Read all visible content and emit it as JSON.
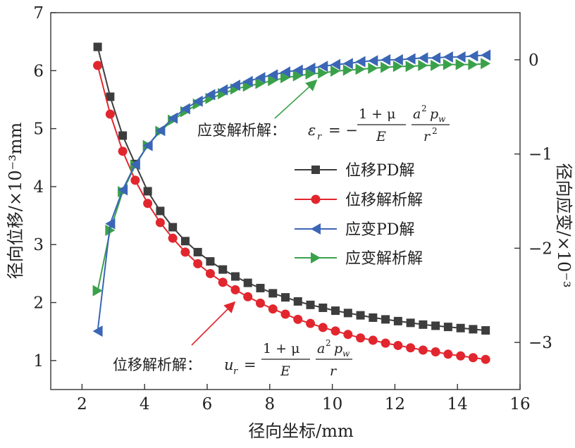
{
  "chart_data": {
    "type": "line",
    "xlabel": "径向坐标/mm",
    "ylabel_left": "径向位移/×10⁻³mm",
    "ylabel_right": "径向应变/×10⁻³",
    "xlim": [
      1,
      16
    ],
    "ylim_left": [
      0.5,
      7
    ],
    "ylim_right": [
      -3.5,
      0.5
    ],
    "x_ticks": [
      "2",
      "4",
      "6",
      "8",
      "10",
      "12",
      "14",
      "16"
    ],
    "y_left_ticks": [
      "1",
      "2",
      "3",
      "4",
      "5",
      "6",
      "7"
    ],
    "y_right_ticks": [
      "0",
      "−1",
      "−2",
      "−3"
    ],
    "legend_position": "center-right",
    "x": [
      2.5,
      2.9,
      3.3,
      3.7,
      4.1,
      4.5,
      4.9,
      5.3,
      5.7,
      6.1,
      6.5,
      6.9,
      7.3,
      7.7,
      8.1,
      8.5,
      8.9,
      9.3,
      9.7,
      10.1,
      10.5,
      10.9,
      11.3,
      11.7,
      12.1,
      12.5,
      12.9,
      13.3,
      13.7,
      14.1,
      14.5,
      14.9
    ],
    "series": [
      {
        "name": "位移PD解",
        "axis": "left",
        "marker": "square",
        "color": "#3d3d3d",
        "values": [
          6.41,
          5.55,
          4.88,
          4.39,
          3.92,
          3.58,
          3.3,
          3.06,
          2.87,
          2.71,
          2.57,
          2.45,
          2.34,
          2.25,
          2.16,
          2.09,
          2.02,
          1.96,
          1.91,
          1.86,
          1.82,
          1.78,
          1.74,
          1.71,
          1.68,
          1.65,
          1.62,
          1.6,
          1.58,
          1.56,
          1.54,
          1.52
        ]
      },
      {
        "name": "位移解析解",
        "axis": "left",
        "marker": "circle",
        "color": "#e2262e",
        "values": [
          6.09,
          5.25,
          4.61,
          4.11,
          3.71,
          3.38,
          3.11,
          2.87,
          2.67,
          2.5,
          2.35,
          2.22,
          2.1,
          1.99,
          1.89,
          1.8,
          1.71,
          1.64,
          1.57,
          1.51,
          1.45,
          1.39,
          1.35,
          1.3,
          1.26,
          1.22,
          1.18,
          1.15,
          1.11,
          1.08,
          1.05,
          1.02
        ]
      },
      {
        "name": "应变PD解",
        "axis": "right",
        "marker": "triangle-left",
        "color": "#3a66b5",
        "values": [
          -2.88,
          -1.74,
          -1.38,
          -1.11,
          -0.91,
          -0.75,
          -0.62,
          -0.52,
          -0.44,
          -0.37,
          -0.32,
          -0.27,
          -0.23,
          -0.19,
          -0.16,
          -0.13,
          -0.11,
          -0.09,
          -0.07,
          -0.05,
          -0.04,
          -0.02,
          -0.01,
          0.0,
          0.0,
          0.01,
          0.02,
          0.02,
          0.03,
          0.03,
          0.04,
          0.05
        ]
      },
      {
        "name": "应变解析解",
        "axis": "right",
        "marker": "triangle-right",
        "color": "#3aa14a",
        "values": [
          -2.45,
          -1.81,
          -1.4,
          -1.12,
          -0.91,
          -0.76,
          -0.64,
          -0.55,
          -0.47,
          -0.41,
          -0.36,
          -0.31,
          -0.28,
          -0.25,
          -0.22,
          -0.19,
          -0.17,
          -0.15,
          -0.14,
          -0.12,
          -0.11,
          -0.1,
          -0.09,
          -0.08,
          -0.07,
          -0.07,
          -0.06,
          -0.06,
          -0.05,
          -0.05,
          -0.05,
          -0.04
        ]
      }
    ],
    "annotations": [
      {
        "label": "应变解析解：",
        "formula_lhs": "ε",
        "formula_lhs_sub": "r",
        "formula_sign": "= −",
        "num": "1 + μ",
        "den": "E",
        "num2": "a",
        "num2_sup": "2",
        "num2_b": "p",
        "num2_sub": "w",
        "den2": "r",
        "den2_sup": "2",
        "arrow_color": "#3aa14a"
      },
      {
        "label": "位移解析解：",
        "formula_lhs": "u",
        "formula_lhs_sub": "r",
        "formula_sign": "=",
        "num": "1 + μ",
        "den": "E",
        "num2": "a",
        "num2_sup": "2",
        "num2_b": "p",
        "num2_sub": "w",
        "den2": "r",
        "arrow_color": "#e2262e"
      }
    ]
  }
}
